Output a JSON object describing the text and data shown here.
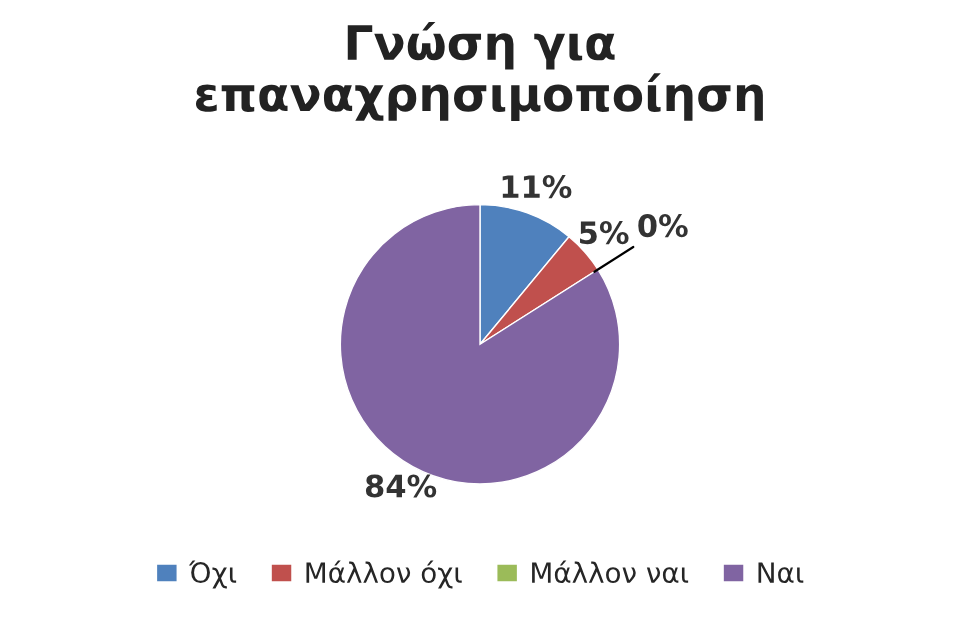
{
  "chart_data": {
    "type": "pie",
    "title": "Γνώση για\nεπαναχρησιμοποίηση",
    "categories": [
      "Όχι",
      "Μάλλον όχι",
      "Μάλλον ναι",
      "Ναι"
    ],
    "values": [
      11,
      5,
      0,
      84
    ],
    "colors": [
      "#4f81bd",
      "#c0504d",
      "#9bbb59",
      "#8064a2"
    ],
    "value_labels": [
      "11%",
      "5%",
      "0%",
      "84%"
    ],
    "legend": "bottom"
  }
}
